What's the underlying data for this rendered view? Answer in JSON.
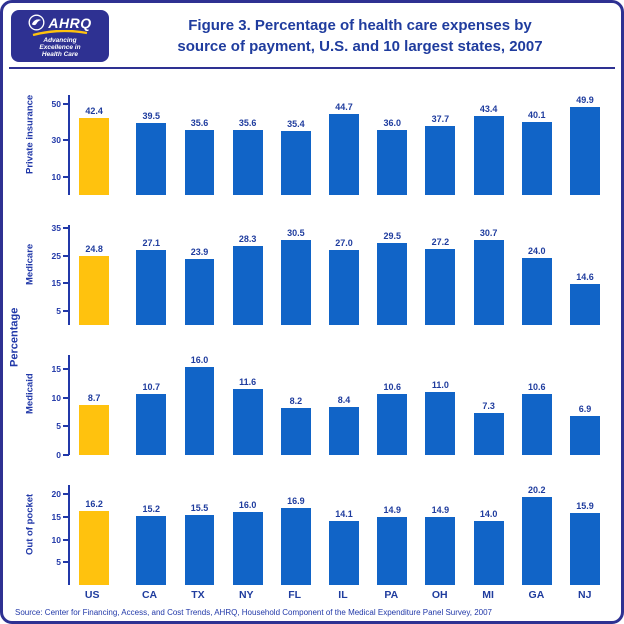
{
  "colors": {
    "frame_border": "#2E3192",
    "title_text": "#1F3C9E",
    "axis_text": "#2138A8",
    "bar_blue": "#1164C7",
    "bar_gold": "#FFC20E"
  },
  "header": {
    "title_line1": "Figure 3. Percentage of health care expenses by",
    "title_line2": "source of payment, U.S. and 10 largest states, 2007",
    "logo": {
      "acronym": "AHRQ",
      "tagline_line1": "Advancing",
      "tagline_line2": "Excellence in",
      "tagline_line3": "Health Care"
    }
  },
  "y_axis_title": "Percentage",
  "source": "Source: Center for Financing, Access, and Cost Trends, AHRQ, Household Component of the Medical Expenditure Panel Survey, 2007",
  "chart_data": {
    "type": "bar",
    "categories": [
      "US",
      "CA",
      "TX",
      "NY",
      "FL",
      "IL",
      "PA",
      "OH",
      "MI",
      "GA",
      "NJ"
    ],
    "highlight_category": "US",
    "highlight_color": "#FFC20E",
    "series_color": "#1164C7",
    "grid": false,
    "legend": false,
    "panels": [
      {
        "name": "Private insurance",
        "values": [
          42.4,
          39.5,
          35.6,
          35.6,
          35.4,
          44.7,
          36.0,
          37.7,
          43.4,
          40.1,
          49.9
        ],
        "ticks": [
          10,
          30,
          50
        ],
        "ymax": 55
      },
      {
        "name": "Medicare",
        "values": [
          24.8,
          27.1,
          23.9,
          28.3,
          30.5,
          27.0,
          29.5,
          27.2,
          30.7,
          24.0,
          14.6
        ],
        "ticks": [
          5,
          15,
          25,
          35
        ],
        "ymax": 36
      },
      {
        "name": "Medicaid",
        "values": [
          8.7,
          10.7,
          16.0,
          11.6,
          8.2,
          8.4,
          10.6,
          11.0,
          7.3,
          10.6,
          6.9
        ],
        "ticks": [
          0,
          5,
          10,
          15
        ],
        "ymax": 17.5
      },
      {
        "name": "Out of pocket",
        "values": [
          16.2,
          15.2,
          15.5,
          16.0,
          16.9,
          14.1,
          14.9,
          14.9,
          14.0,
          20.2,
          15.9
        ],
        "ticks": [
          5,
          10,
          15,
          20
        ],
        "ymax": 22
      }
    ]
  }
}
